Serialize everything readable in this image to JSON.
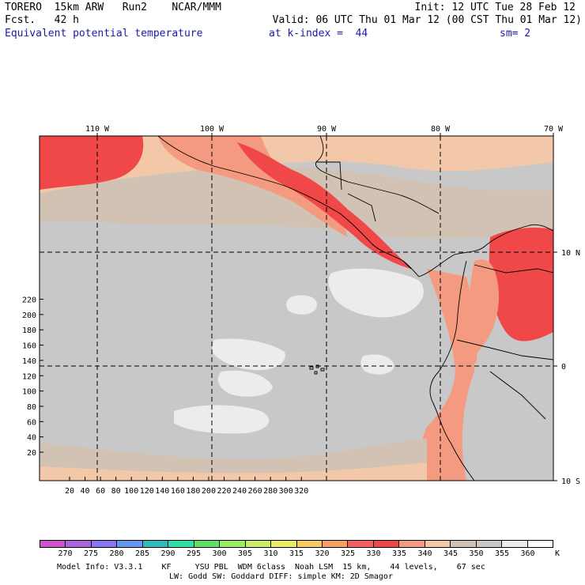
{
  "header": {
    "line1_left": "TORERO  15km ARW   Run2    NCAR/MMM",
    "line1_right": "Init: 12 UTC Tue 28 Feb 12",
    "line2_left": "Fcst.   42 h",
    "line2_right": "Valid: 06 UTC Thu 01 Mar 12 (00 CST Thu 01 Mar 12)",
    "line3_field": "Equivalent potential temperature",
    "line3_level": "at k-index =  44",
    "line3_smooth": "sm= 2"
  },
  "map": {
    "top_lon_labels": [
      "110 W",
      "100 W",
      "90 W",
      "80 W",
      "70 W"
    ],
    "right_lat_labels": [
      "10 N",
      "0",
      "10 S"
    ],
    "y_ticks": [
      "20",
      "40",
      "60",
      "80",
      "100",
      "120",
      "140",
      "160",
      "180",
      "200",
      "220"
    ],
    "x_ticks": [
      "20",
      "40",
      "60",
      "80",
      "100",
      "120",
      "140",
      "160",
      "180",
      "200",
      "220",
      "240",
      "260",
      "280",
      "300",
      "320"
    ],
    "background_color": "#c8c8c8"
  },
  "colorbar": {
    "labels": [
      "270",
      "275",
      "280",
      "285",
      "290",
      "295",
      "300",
      "305",
      "310",
      "315",
      "320",
      "325",
      "330",
      "335",
      "340",
      "345",
      "350",
      "355",
      "360"
    ],
    "unit": "K",
    "colors": [
      "#cc55cc",
      "#aa66dd",
      "#8877ee",
      "#6699ee",
      "#33bbbb",
      "#33ddaa",
      "#66dd66",
      "#99ee66",
      "#ccee66",
      "#eeee66",
      "#f6cc66",
      "#f6a066",
      "#f26060",
      "#f04848",
      "#f49a80",
      "#f2c8a8",
      "#d2c2b4",
      "#c8c8c8",
      "#ececec",
      "#ffffff"
    ]
  },
  "footer": {
    "line1": "Model Info: V3.3.1    KF     YSU PBL  WDM 6class  Noah LSM  15 km,    44 levels,    67 sec",
    "line2": "LW: Godd SW: Goddard DIFF: simple KM: 2D Smagor"
  }
}
